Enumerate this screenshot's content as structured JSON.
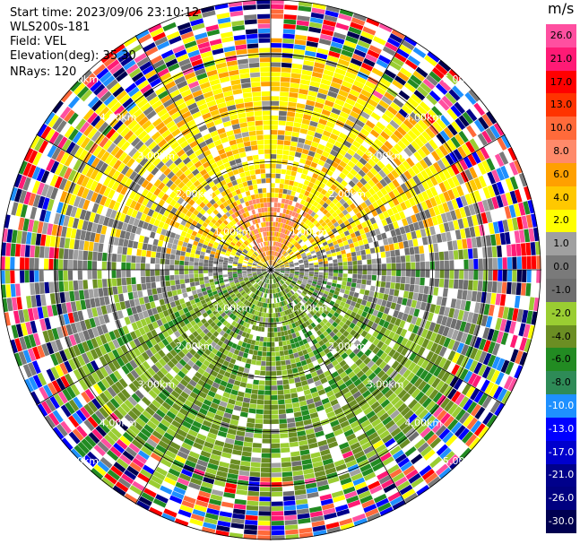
{
  "info": {
    "start_time": "Start time: 2023/09/06 23:10:12",
    "site": "WLS200s-181",
    "field": "Field: VEL",
    "elevation": "Elevation(deg): 35.30",
    "nrays": "NRays: 120"
  },
  "ring_labels": [
    "1.00km",
    "2.00km",
    "3.00km",
    "4.00km",
    "5.00km"
  ],
  "colorbar": {
    "unit": "m/s",
    "ticks": [
      "26.0",
      "21.0",
      "17.0",
      "13.0",
      "10.0",
      "8.0",
      "6.0",
      "4.0",
      "2.0",
      "1.0",
      "0.0",
      "-1.0",
      "-2.0",
      "-4.0",
      "-6.0",
      "-8.0",
      "-10.0",
      "-13.0",
      "-17.0",
      "-21.0",
      "-26.0",
      "-30.0"
    ],
    "colors": [
      "#ff4fa0",
      "#ff1a75",
      "#ff0000",
      "#ff3300",
      "#ff6a3a",
      "#ff8a6a",
      "#ffa000",
      "#ffc800",
      "#ffff00",
      "#a0a0a0",
      "#7a7a7a",
      "#6e6e6e",
      "#9acd32",
      "#6b8e23",
      "#228b22",
      "#2e8b57",
      "#1e90ff",
      "#0000ff",
      "#0000cd",
      "#00008b",
      "#000080",
      "#000050"
    ]
  }
}
